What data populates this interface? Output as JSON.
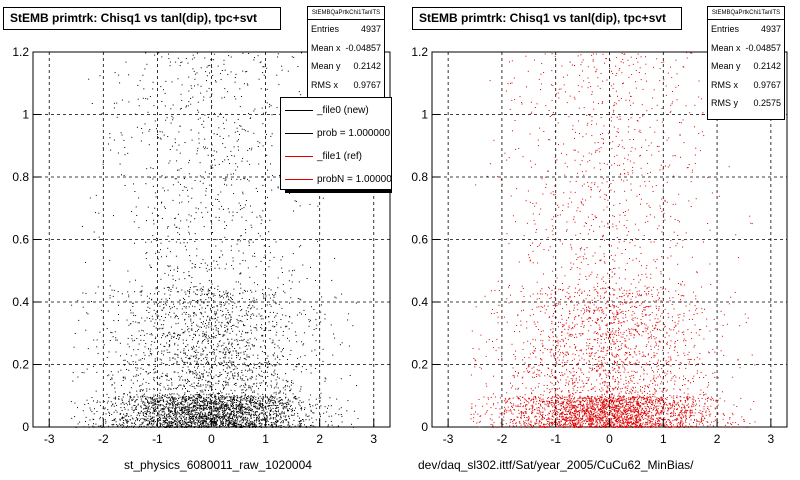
{
  "footer_text": "",
  "colors": {
    "ref": "#000000",
    "new": "#dd0000"
  },
  "chart_data": [
    {
      "type": "scatter",
      "title": "StEMB primtrk: Chisq1 vs tanl(dip), tpc+svt",
      "xlabel": "st_physics_6080011_raw_1020004",
      "ylabel": "",
      "xlim": [
        -3.3,
        3.3
      ],
      "ylim": [
        0,
        1.2
      ],
      "x_ticks": [
        "-3",
        "-2",
        "-1",
        "0",
        "1",
        "2",
        "3"
      ],
      "y_ticks": [
        "0",
        "0.2",
        "0.4",
        "0.6",
        "0.8",
        "1",
        "1.2"
      ],
      "grid": true,
      "point_color": "#000000",
      "stats": {
        "header": "StEMBQaPrtkChi1TanlTS",
        "rows": [
          {
            "label": "Entries",
            "value": "4937"
          },
          {
            "label": "Mean x",
            "value": "-0.04857"
          },
          {
            "label": "Mean y",
            "value": "0.2142"
          },
          {
            "label": "RMS x",
            "value": "0.9767"
          }
        ]
      },
      "legend": {
        "placement": "top-right",
        "entries": [
          {
            "label": "_file0 (new)",
            "color": "#000000"
          },
          {
            "label": "prob = 1.000000",
            "color": "#000000"
          },
          {
            "label": "_file1 (ref)",
            "color": "#dd0000"
          },
          {
            "label": "probN = 1.000000",
            "color": "#dd0000"
          }
        ]
      },
      "distribution": {
        "entries": 4937,
        "mean_x": -0.04857,
        "rms_x": 0.9767,
        "mean_y": 0.2142,
        "dense_band_y": [
          0,
          0.1
        ]
      }
    },
    {
      "type": "scatter",
      "title": "StEMB primtrk: Chisq1 vs tanl(dip), tpc+svt",
      "xlabel": "dev/daq_sl302.ittf/Sat/year_2005/CuCu62_MinBias/",
      "ylabel": "",
      "xlim": [
        -3.3,
        3.3
      ],
      "ylim": [
        0,
        1.2
      ],
      "x_ticks": [
        "-3",
        "-2",
        "-1",
        "0",
        "1",
        "2",
        "3"
      ],
      "y_ticks": [
        "0",
        "0.2",
        "0.4",
        "0.6",
        "0.8",
        "1",
        "1.2"
      ],
      "grid": true,
      "point_color": "#dd0000",
      "stats": {
        "header": "StEMBQaPrtkChi1TanlTS",
        "rows": [
          {
            "label": "Entries",
            "value": "4937"
          },
          {
            "label": "Mean x",
            "value": "-0.04857"
          },
          {
            "label": "Mean y",
            "value": "0.2142"
          },
          {
            "label": "RMS x",
            "value": "0.9767"
          },
          {
            "label": "RMS y",
            "value": "0.2575"
          }
        ]
      },
      "distribution": {
        "entries": 4937,
        "mean_x": -0.04857,
        "rms_x": 0.9767,
        "mean_y": 0.2142,
        "rms_y": 0.2575,
        "dense_band_y": [
          0,
          0.1
        ]
      }
    }
  ]
}
